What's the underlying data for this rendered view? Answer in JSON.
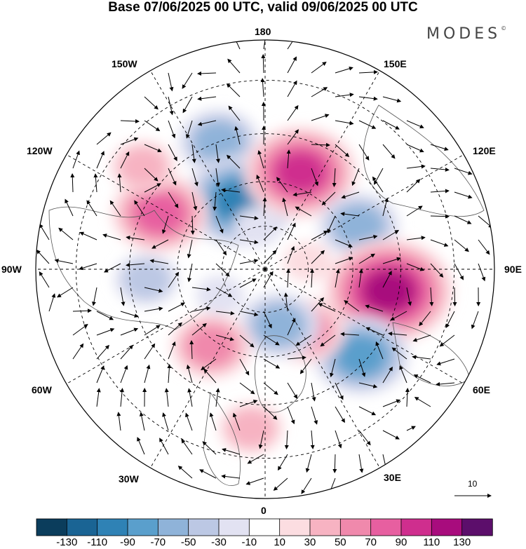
{
  "title": "Base 07/06/2025 00 UTC, valid 09/06/2025 00 UTC",
  "brand": "MODES",
  "brand_mark": "©",
  "longitude_labels": {
    "lon_180": "180",
    "lon_150e": "150E",
    "lon_120e": "120E",
    "lon_90e": "90E",
    "lon_60e": "60E",
    "lon_30e": "30E",
    "lon_0": "0",
    "lon_30w": "30W",
    "lon_60w": "60W",
    "lon_90w": "90W",
    "lon_120w": "120W",
    "lon_150w": "150W"
  },
  "wind_reference_label": "10",
  "colorbar": {
    "labels": [
      "-130",
      "-110",
      "-90",
      "-70",
      "-50",
      "-30",
      "-10",
      "10",
      "30",
      "50",
      "70",
      "90",
      "110",
      "130"
    ],
    "colors": [
      "#0b3d5c",
      "#1a6494",
      "#2f82b5",
      "#5a9fcc",
      "#8fb3d9",
      "#bcc8e4",
      "#e2e2f2",
      "#ffffff",
      "#fcdde1",
      "#f7b3c2",
      "#f089ac",
      "#e75fa0",
      "#cf2e8e",
      "#a80c7d",
      "#5c0e6b"
    ]
  },
  "anomaly_centers": [
    {
      "lon": -160,
      "lat": 45,
      "value": -50
    },
    {
      "lon": -160,
      "lat": 65,
      "value": -95
    },
    {
      "lon": 160,
      "lat": 55,
      "value": 95
    },
    {
      "lon": 115,
      "lat": 55,
      "value": -65
    },
    {
      "lon": 80,
      "lat": 48,
      "value": 125
    },
    {
      "lon": 48,
      "lat": 47,
      "value": -85
    },
    {
      "lon": 33,
      "lat": 65,
      "value": 55
    },
    {
      "lon": 14,
      "lat": 70,
      "value": -55
    },
    {
      "lon": -5,
      "lat": 38,
      "value": 45
    },
    {
      "lon": -35,
      "lat": 58,
      "value": 55
    },
    {
      "lon": -85,
      "lat": 50,
      "value": -45
    },
    {
      "lon": -118,
      "lat": 50,
      "value": 75
    },
    {
      "lon": -130,
      "lat": 38,
      "value": 35
    },
    {
      "lon": -60,
      "lat": 72,
      "value": -20
    },
    {
      "lon": 100,
      "lat": 75,
      "value": 25
    },
    {
      "lon": -170,
      "lat": 75,
      "value": -25
    }
  ]
}
